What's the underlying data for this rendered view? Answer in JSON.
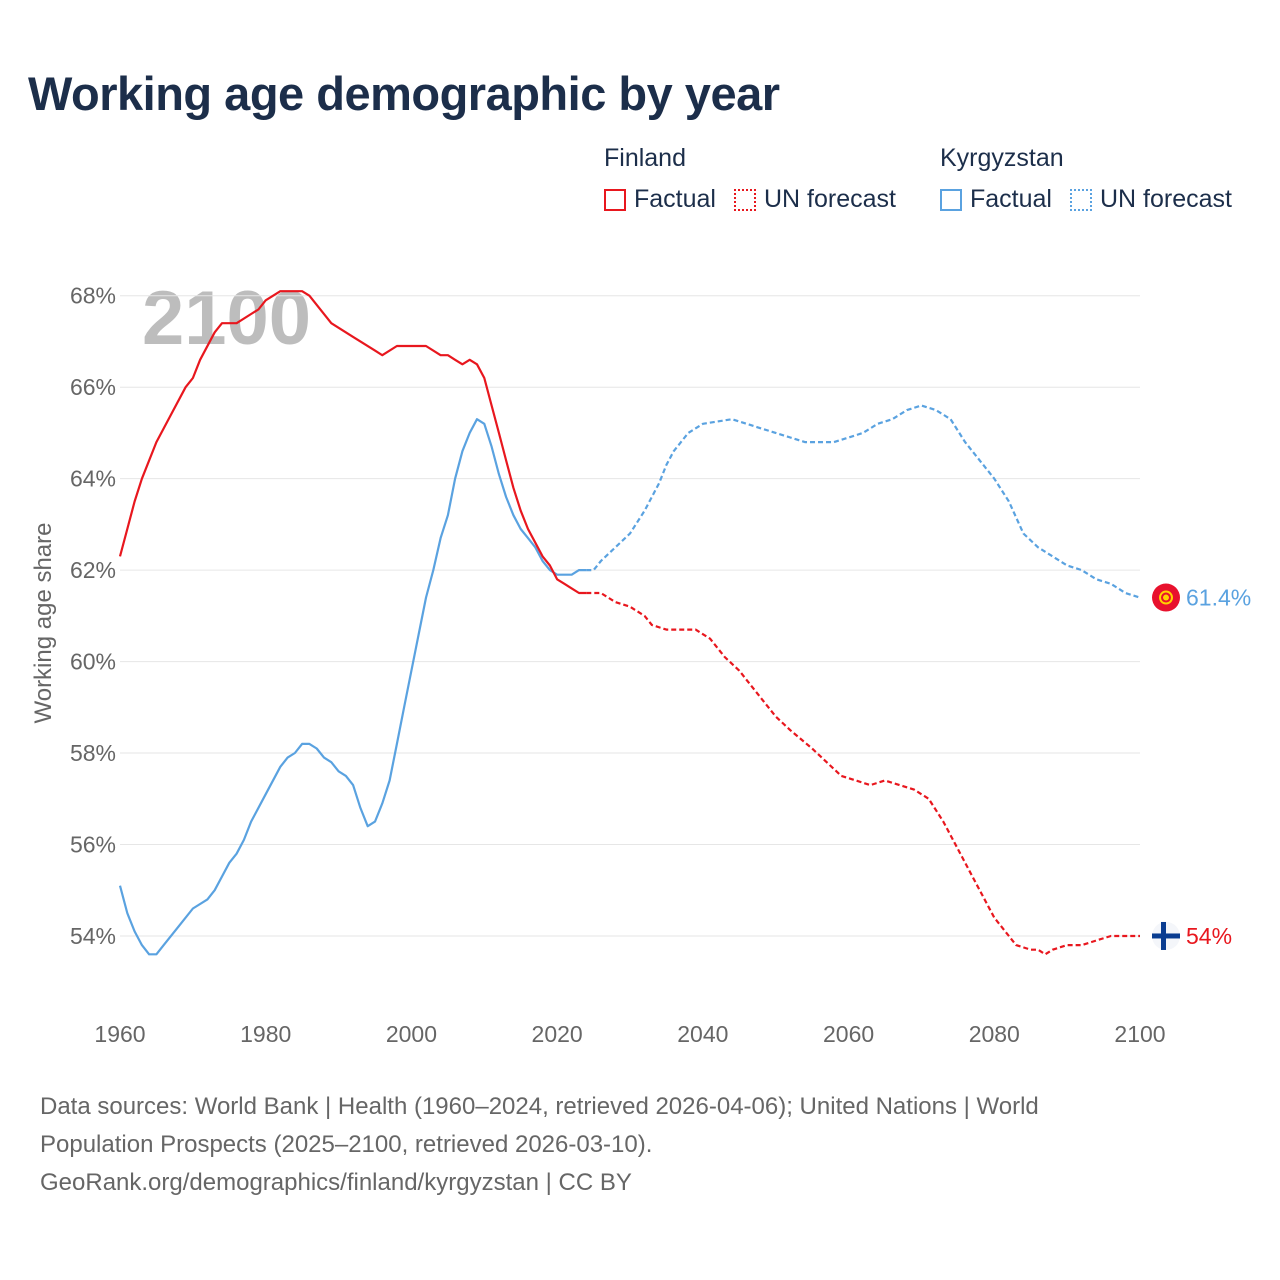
{
  "title": "Working age demographic by year",
  "legend": [
    {
      "group": "Finland",
      "factual": "Factual",
      "forecast": "UN forecast",
      "color": "#e8171e"
    },
    {
      "group": "Kyrgyzstan",
      "factual": "Factual",
      "forecast": "UN forecast",
      "color": "#5aa2e0"
    }
  ],
  "sources": {
    "line1": "Data sources: World Bank | Health (1960–2024, retrieved 2026-04-06); United Nations | World",
    "line2": "Population Prospects (2025–2100, retrieved 2026-03-10).",
    "line3": "GeoRank.org/demographics/finland/kyrgyzstan | CC BY"
  },
  "chart_data": {
    "type": "line",
    "year_watermark": "2100",
    "ylabel": "Working age share",
    "xlabel": "",
    "xlim": [
      1960,
      2100
    ],
    "ylim": [
      52.6,
      69
    ],
    "x_ticks": [
      1960,
      1980,
      2000,
      2020,
      2040,
      2060,
      2080,
      2100
    ],
    "y_ticks": [
      54,
      56,
      58,
      60,
      62,
      64,
      66,
      68
    ],
    "y_tick_labels": [
      "54%",
      "56%",
      "58%",
      "60%",
      "62%",
      "64%",
      "66%",
      "68%"
    ],
    "grid": true,
    "series": [
      {
        "name": "Finland",
        "color": "#e8171e",
        "end_label": "54%",
        "flag_icon": "finland-flag-icon",
        "factual": {
          "x": [
            1960,
            1961,
            1962,
            1963,
            1965,
            1967,
            1969,
            1970,
            1971,
            1973,
            1974,
            1976,
            1978,
            1979,
            1980,
            1982,
            1983,
            1985,
            1986,
            1989,
            1992,
            1995,
            1996,
            1998,
            2002,
            2004,
            2005,
            2006,
            2007,
            2008,
            2009,
            2010,
            2011,
            2012,
            2013,
            2014,
            2015,
            2016,
            2017,
            2018,
            2019,
            2020,
            2021,
            2022,
            2023,
            2024
          ],
          "y": [
            62.3,
            62.9,
            63.5,
            64.0,
            64.8,
            65.4,
            66.0,
            66.2,
            66.6,
            67.2,
            67.4,
            67.4,
            67.6,
            67.7,
            67.9,
            68.1,
            68.1,
            68.1,
            68.0,
            67.4,
            67.1,
            66.8,
            66.7,
            66.9,
            66.9,
            66.7,
            66.7,
            66.6,
            66.5,
            66.6,
            66.5,
            66.2,
            65.6,
            65.0,
            64.4,
            63.8,
            63.3,
            62.9,
            62.6,
            62.3,
            62.1,
            61.8,
            61.7,
            61.6,
            61.5,
            61.5
          ]
        },
        "forecast": {
          "x": [
            2024,
            2025,
            2026,
            2028,
            2030,
            2032,
            2033,
            2035,
            2039,
            2041,
            2043,
            2045,
            2048,
            2050,
            2052,
            2055,
            2057,
            2059,
            2061,
            2063,
            2065,
            2067,
            2069,
            2071,
            2073,
            2075,
            2077,
            2080,
            2082,
            2083,
            2085,
            2086,
            2087,
            2088,
            2090,
            2092,
            2094,
            2096,
            2098,
            2100
          ],
          "y": [
            61.5,
            61.5,
            61.5,
            61.3,
            61.2,
            61.0,
            60.8,
            60.7,
            60.7,
            60.5,
            60.1,
            59.8,
            59.2,
            58.8,
            58.5,
            58.1,
            57.8,
            57.5,
            57.4,
            57.3,
            57.4,
            57.3,
            57.2,
            57.0,
            56.5,
            55.9,
            55.3,
            54.4,
            54.0,
            53.8,
            53.7,
            53.7,
            53.6,
            53.7,
            53.8,
            53.8,
            53.9,
            54.0,
            54.0,
            54.0
          ]
        }
      },
      {
        "name": "Kyrgyzstan",
        "color": "#5aa2e0",
        "end_label": "61.4%",
        "flag_icon": "kyrgyzstan-flag-icon",
        "factual": {
          "x": [
            1960,
            1961,
            1962,
            1963,
            1964,
            1965,
            1966,
            1968,
            1970,
            1972,
            1973,
            1974,
            1975,
            1976,
            1977,
            1978,
            1980,
            1982,
            1983,
            1984,
            1985,
            1986,
            1987,
            1988,
            1989,
            1990,
            1991,
            1992,
            1993,
            1994,
            1995,
            1996,
            1997,
            1998,
            1999,
            2000,
            2001,
            2002,
            2003,
            2004,
            2005,
            2006,
            2007,
            2008,
            2009,
            2010,
            2011,
            2012,
            2013,
            2014,
            2015,
            2016,
            2017,
            2018,
            2019,
            2020,
            2021,
            2022,
            2023,
            2024
          ],
          "y": [
            55.1,
            54.5,
            54.1,
            53.8,
            53.6,
            53.6,
            53.8,
            54.2,
            54.6,
            54.8,
            55.0,
            55.3,
            55.6,
            55.8,
            56.1,
            56.5,
            57.1,
            57.7,
            57.9,
            58.0,
            58.2,
            58.2,
            58.1,
            57.9,
            57.8,
            57.6,
            57.5,
            57.3,
            56.8,
            56.4,
            56.5,
            56.9,
            57.4,
            58.2,
            59.0,
            59.8,
            60.6,
            61.4,
            62.0,
            62.7,
            63.2,
            64.0,
            64.6,
            65.0,
            65.3,
            65.2,
            64.7,
            64.1,
            63.6,
            63.2,
            62.9,
            62.7,
            62.5,
            62.2,
            62.0,
            61.9,
            61.9,
            61.9,
            62.0,
            62.0
          ]
        },
        "forecast": {
          "x": [
            2024,
            2025,
            2026,
            2028,
            2030,
            2032,
            2034,
            2035,
            2036,
            2038,
            2040,
            2044,
            2046,
            2048,
            2050,
            2052,
            2054,
            2056,
            2058,
            2060,
            2062,
            2064,
            2066,
            2068,
            2070,
            2072,
            2074,
            2076,
            2078,
            2080,
            2082,
            2084,
            2086,
            2088,
            2090,
            2092,
            2094,
            2096,
            2098,
            2100
          ],
          "y": [
            62.0,
            62.0,
            62.2,
            62.5,
            62.8,
            63.3,
            63.9,
            64.3,
            64.6,
            65.0,
            65.2,
            65.3,
            65.2,
            65.1,
            65.0,
            64.9,
            64.8,
            64.8,
            64.8,
            64.9,
            65.0,
            65.2,
            65.3,
            65.5,
            65.6,
            65.5,
            65.3,
            64.8,
            64.4,
            64.0,
            63.5,
            62.8,
            62.5,
            62.3,
            62.1,
            62.0,
            61.8,
            61.7,
            61.5,
            61.4
          ]
        }
      }
    ]
  }
}
